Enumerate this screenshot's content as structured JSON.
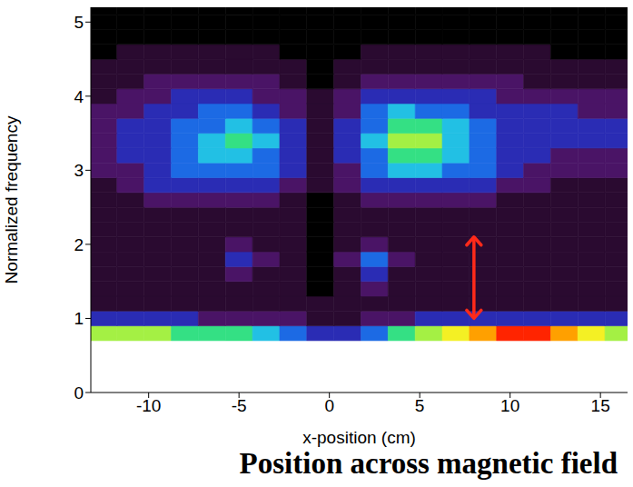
{
  "chart_data": {
    "type": "heatmap",
    "x_label": "x-position  (cm)",
    "y_label": "Normalized frequency",
    "annotation": "Position across magnetic field",
    "xlim": [
      -13.2,
      16.5
    ],
    "xticks": [
      -10,
      -5,
      0,
      5,
      10,
      15
    ],
    "ylim": [
      0,
      5.2
    ],
    "yticks": [
      0,
      1,
      2,
      3,
      4,
      5
    ],
    "grid": false,
    "arrow": {
      "x": 8,
      "from": 1.0,
      "to": 2.1,
      "color": "#ff2a1a"
    },
    "cells": {
      "x": [
        -12.5,
        -11,
        -9.5,
        -8,
        -6.5,
        -5,
        -3.5,
        -2,
        -0.5,
        1,
        2.5,
        4,
        5.5,
        7,
        8.5,
        10,
        11.5,
        13,
        14.5,
        16
      ],
      "y": [
        0.8,
        1.0,
        1.2,
        1.4,
        1.6,
        1.8,
        2.0,
        2.2,
        2.4,
        2.6,
        2.8,
        3.0,
        3.2,
        3.4,
        3.6,
        3.8,
        4.0,
        4.2,
        4.4,
        4.6,
        4.8,
        5.0,
        5.2
      ],
      "z": [
        [
          7,
          7,
          7,
          6,
          6,
          6,
          5,
          4,
          3,
          3,
          4,
          6,
          7,
          8,
          9,
          10,
          10,
          9,
          8,
          7
        ],
        [
          3,
          3,
          3,
          3,
          2,
          2,
          2,
          2,
          1,
          1,
          2,
          2,
          3,
          3,
          3,
          3,
          3,
          3,
          3,
          3
        ],
        [
          1,
          1,
          1,
          1,
          1,
          1,
          1,
          1,
          1,
          1,
          1,
          1,
          1,
          1,
          1,
          1,
          1,
          1,
          1,
          1
        ],
        [
          1,
          1,
          1,
          1,
          1,
          1,
          1,
          1,
          0,
          1,
          2,
          1,
          1,
          1,
          1,
          1,
          1,
          1,
          1,
          1
        ],
        [
          1,
          1,
          1,
          1,
          1,
          2,
          1,
          1,
          0,
          1,
          3,
          1,
          1,
          1,
          1,
          1,
          1,
          1,
          1,
          1
        ],
        [
          1,
          1,
          1,
          1,
          1,
          3,
          2,
          1,
          0,
          2,
          4,
          2,
          1,
          1,
          1,
          1,
          1,
          1,
          1,
          1
        ],
        [
          1,
          1,
          1,
          1,
          1,
          2,
          1,
          1,
          0,
          1,
          2,
          1,
          1,
          1,
          1,
          1,
          1,
          1,
          1,
          1
        ],
        [
          1,
          1,
          1,
          1,
          1,
          1,
          1,
          1,
          0,
          1,
          1,
          1,
          1,
          1,
          1,
          1,
          1,
          1,
          1,
          1
        ],
        [
          1,
          1,
          1,
          1,
          1,
          1,
          1,
          1,
          0,
          1,
          1,
          1,
          1,
          1,
          1,
          1,
          1,
          1,
          1,
          1
        ],
        [
          1,
          1,
          2,
          2,
          2,
          2,
          2,
          1,
          0,
          1,
          2,
          2,
          2,
          2,
          2,
          1,
          1,
          1,
          1,
          1
        ],
        [
          1,
          2,
          3,
          3,
          3,
          3,
          3,
          2,
          1,
          2,
          3,
          3,
          3,
          3,
          3,
          2,
          2,
          1,
          1,
          1
        ],
        [
          2,
          2,
          3,
          4,
          4,
          4,
          4,
          3,
          1,
          2,
          4,
          5,
          5,
          4,
          4,
          3,
          2,
          2,
          2,
          2
        ],
        [
          2,
          3,
          3,
          4,
          5,
          5,
          4,
          3,
          1,
          3,
          4,
          6,
          6,
          5,
          4,
          3,
          3,
          2,
          2,
          2
        ],
        [
          2,
          3,
          3,
          4,
          5,
          6,
          5,
          3,
          1,
          3,
          5,
          7,
          7,
          5,
          4,
          3,
          3,
          3,
          3,
          3
        ],
        [
          2,
          3,
          3,
          4,
          4,
          5,
          4,
          3,
          1,
          3,
          4,
          6,
          6,
          5,
          4,
          3,
          3,
          3,
          3,
          3
        ],
        [
          2,
          2,
          3,
          3,
          4,
          4,
          3,
          2,
          1,
          2,
          4,
          5,
          4,
          4,
          3,
          3,
          3,
          3,
          2,
          2
        ],
        [
          1,
          2,
          2,
          3,
          3,
          3,
          2,
          2,
          1,
          2,
          3,
          3,
          3,
          3,
          3,
          2,
          2,
          2,
          2,
          2
        ],
        [
          1,
          1,
          2,
          2,
          2,
          2,
          2,
          1,
          0,
          1,
          2,
          2,
          2,
          2,
          2,
          2,
          1,
          1,
          1,
          1
        ],
        [
          1,
          1,
          1,
          1,
          1,
          1,
          1,
          1,
          0,
          1,
          1,
          1,
          1,
          1,
          1,
          1,
          1,
          1,
          1,
          1
        ],
        [
          0,
          1,
          1,
          1,
          1,
          1,
          1,
          0,
          0,
          0,
          1,
          1,
          1,
          1,
          1,
          1,
          1,
          0,
          0,
          0
        ],
        [
          0,
          0,
          0,
          0,
          0,
          0,
          0,
          0,
          0,
          0,
          0,
          0,
          0,
          0,
          0,
          0,
          0,
          0,
          0,
          0
        ],
        [
          0,
          0,
          0,
          0,
          0,
          0,
          0,
          0,
          0,
          0,
          0,
          0,
          0,
          0,
          0,
          0,
          0,
          0,
          0,
          0
        ],
        [
          0,
          0,
          0,
          0,
          0,
          0,
          0,
          0,
          0,
          0,
          0,
          0,
          0,
          0,
          0,
          0,
          0,
          0,
          0,
          0
        ]
      ]
    }
  }
}
